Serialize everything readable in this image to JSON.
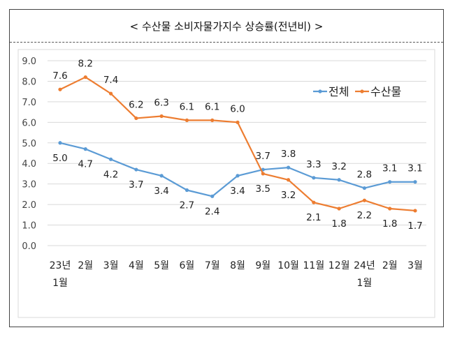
{
  "title": "< 수산물 소비자물가지수 상승률(전년비) >",
  "chart_data": {
    "type": "line",
    "title": "< 수산물 소비자물가지수 상승률(전년비) >",
    "categories": [
      [
        "23년",
        "1월"
      ],
      [
        "2월"
      ],
      [
        "3월"
      ],
      [
        "4월"
      ],
      [
        "5월"
      ],
      [
        "6월"
      ],
      [
        "7월"
      ],
      [
        "8월"
      ],
      [
        "9월"
      ],
      [
        "10월"
      ],
      [
        "11월"
      ],
      [
        "12월"
      ],
      [
        "24년",
        "1월"
      ],
      [
        "2월"
      ],
      [
        "3월"
      ]
    ],
    "series": [
      {
        "name": "전체",
        "color": "#5b9bd5",
        "values": [
          5.0,
          4.7,
          4.2,
          3.7,
          3.4,
          2.7,
          2.4,
          3.4,
          3.7,
          3.8,
          3.3,
          3.2,
          2.8,
          3.1,
          3.1
        ]
      },
      {
        "name": "수산물",
        "color": "#ed7d31",
        "values": [
          7.6,
          8.2,
          7.4,
          6.2,
          6.3,
          6.1,
          6.1,
          6.0,
          3.5,
          3.2,
          2.1,
          1.8,
          2.2,
          1.8,
          1.7
        ]
      }
    ],
    "yticks": [
      "0.0",
      "1.0",
      "2.0",
      "3.0",
      "4.0",
      "5.0",
      "6.0",
      "7.0",
      "8.0",
      "9.0"
    ],
    "ylim": [
      0,
      9
    ],
    "grid": true,
    "legend_position": "top-right"
  }
}
